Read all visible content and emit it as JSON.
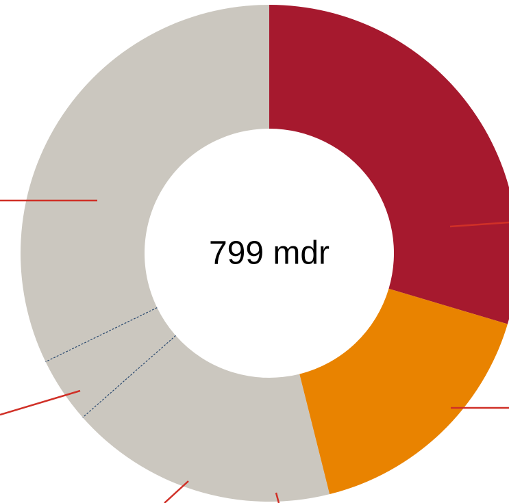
{
  "chart_data": {
    "type": "donut",
    "center_label": "799 mdr",
    "values": [
      29.6,
      16.5,
      17.4,
      4.3,
      32.2
    ],
    "colors": [
      "#a6192e",
      "#e98300",
      "#cbc7bf",
      "#cbc7bf",
      "#cbc7bf"
    ]
  }
}
